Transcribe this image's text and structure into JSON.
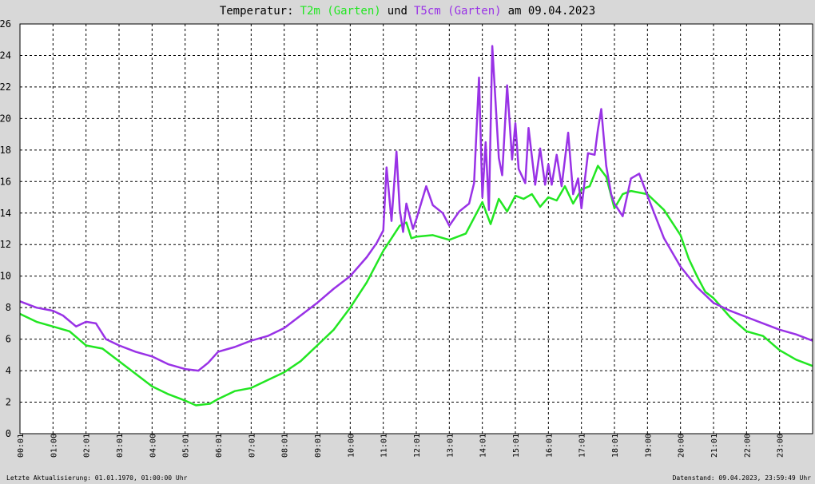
{
  "chart_data": {
    "type": "line",
    "title_parts": {
      "prefix": "Temperatur:",
      "series1": "T2m (Garten)",
      "connector": "und",
      "series2": "T5cm (Garten)",
      "suffix": "am 09.04.2023"
    },
    "xlabel": "",
    "ylabel": "",
    "x_tick_labels": [
      "00:01",
      "01:00",
      "02:01",
      "03:01",
      "04:00",
      "05:01",
      "06:01",
      "07:01",
      "08:01",
      "09:01",
      "10:00",
      "11:01",
      "12:01",
      "13:01",
      "14:01",
      "15:01",
      "16:01",
      "17:01",
      "18:01",
      "19:00",
      "20:00",
      "21:01",
      "22:00",
      "23:00"
    ],
    "xlim": [
      0,
      24
    ],
    "ylim": [
      0,
      26
    ],
    "y_ticks": [
      0,
      2,
      4,
      6,
      8,
      10,
      12,
      14,
      16,
      18,
      20,
      22,
      24,
      26
    ],
    "grid": true,
    "series": [
      {
        "name": "T2m (Garten)",
        "color": "#22e622",
        "x": [
          0,
          0.5,
          1,
          1.5,
          2,
          2.5,
          3,
          3.5,
          4,
          4.5,
          5,
          5.33,
          5.75,
          6,
          6.5,
          7,
          7.5,
          8,
          8.5,
          9,
          9.5,
          10,
          10.5,
          11,
          11.5,
          11.7,
          11.85,
          12,
          12.5,
          13,
          13.5,
          14,
          14.25,
          14.5,
          14.75,
          15,
          15.25,
          15.5,
          15.75,
          16,
          16.25,
          16.5,
          16.75,
          17,
          17.25,
          17.5,
          17.75,
          18,
          18.25,
          18.5,
          19,
          19.5,
          20,
          20.25,
          20.5,
          20.75,
          21,
          21.5,
          22,
          22.5,
          23,
          23.5,
          24
        ],
        "y": [
          7.6,
          7.1,
          6.8,
          6.5,
          5.6,
          5.4,
          4.6,
          3.8,
          3.0,
          2.5,
          2.1,
          1.8,
          1.9,
          2.2,
          2.7,
          2.9,
          3.4,
          3.9,
          4.6,
          5.6,
          6.6,
          8.0,
          9.6,
          11.6,
          13.2,
          13.4,
          12.4,
          12.5,
          12.6,
          12.3,
          12.7,
          14.7,
          13.3,
          14.9,
          14.1,
          15.1,
          14.9,
          15.2,
          14.4,
          15.0,
          14.8,
          15.7,
          14.6,
          15.5,
          15.7,
          17.0,
          16.3,
          14.3,
          15.2,
          15.4,
          15.2,
          14.2,
          12.6,
          11.1,
          10.0,
          9.0,
          8.6,
          7.4,
          6.5,
          6.2,
          5.3,
          4.7,
          4.3
        ]
      },
      {
        "name": "T5cm (Garten)",
        "color": "#9932e6",
        "x": [
          0,
          0.5,
          1,
          1.3,
          1.7,
          2,
          2.3,
          2.6,
          3,
          3.5,
          4,
          4.5,
          5,
          5.4,
          5.7,
          6,
          6.5,
          7,
          7.5,
          8,
          8.5,
          9,
          9.5,
          10,
          10.5,
          10.8,
          11,
          11.1,
          11.25,
          11.4,
          11.5,
          11.6,
          11.7,
          11.9,
          12,
          12.3,
          12.5,
          12.8,
          13,
          13.3,
          13.6,
          13.75,
          13.9,
          14,
          14.1,
          14.2,
          14.3,
          14.5,
          14.6,
          14.75,
          14.9,
          15,
          15.1,
          15.3,
          15.4,
          15.6,
          15.75,
          15.9,
          16,
          16.1,
          16.25,
          16.4,
          16.6,
          16.75,
          16.9,
          17,
          17.2,
          17.4,
          17.5,
          17.6,
          17.75,
          17.9,
          18,
          18.25,
          18.5,
          18.75,
          19,
          19.5,
          20,
          20.5,
          21,
          21.5,
          22,
          22.5,
          23,
          23.5,
          24
        ],
        "y": [
          8.4,
          8.0,
          7.8,
          7.5,
          6.8,
          7.1,
          7.0,
          6.0,
          5.6,
          5.2,
          4.9,
          4.4,
          4.1,
          4.0,
          4.5,
          5.2,
          5.5,
          5.9,
          6.2,
          6.7,
          7.5,
          8.3,
          9.2,
          10.0,
          11.2,
          12.1,
          12.9,
          16.9,
          13.5,
          17.9,
          14.2,
          12.8,
          14.6,
          13.0,
          13.6,
          15.7,
          14.5,
          14.0,
          13.2,
          14.1,
          14.6,
          15.9,
          22.6,
          15.0,
          18.5,
          14.2,
          24.6,
          17.5,
          16.4,
          22.1,
          17.4,
          19.7,
          16.8,
          15.9,
          19.4,
          15.8,
          18.1,
          15.8,
          17.1,
          15.8,
          17.7,
          15.7,
          19.1,
          15.2,
          16.2,
          14.3,
          17.8,
          17.7,
          19.3,
          20.6,
          17.0,
          15.2,
          14.6,
          13.8,
          16.2,
          16.5,
          15.1,
          12.4,
          10.6,
          9.3,
          8.3,
          7.8,
          7.4,
          7.0,
          6.6,
          6.3,
          5.9
        ]
      }
    ],
    "footer": {
      "left": "Letzte Aktualisierung: 01.01.1970, 01:00:00 Uhr",
      "right": "Datenstand: 09.04.2023, 23:59:49 Uhr"
    },
    "colors": {
      "background": "#d8d8d8",
      "plot_background": "#ffffff",
      "grid": "#000000"
    }
  }
}
